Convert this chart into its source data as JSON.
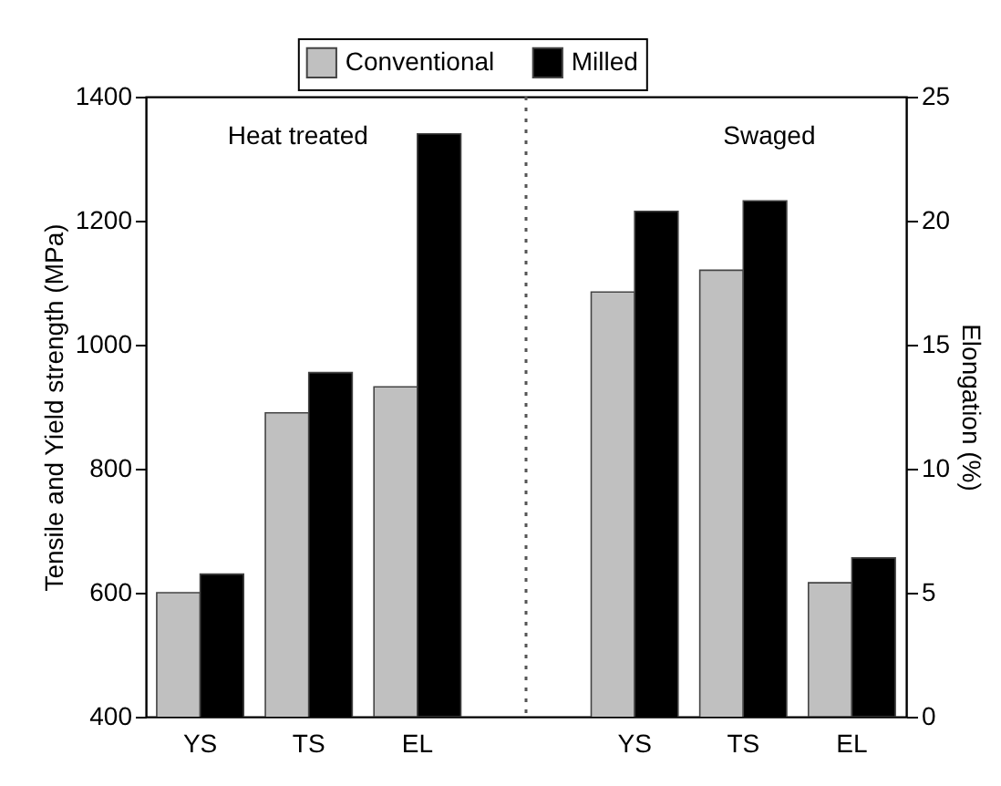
{
  "chart_data": {
    "type": "bar",
    "categories": [
      "YS",
      "TS",
      "EL",
      null,
      "YS",
      "TS",
      "EL"
    ],
    "series": [
      {
        "name": "Conventional",
        "color": "#c0c0c0",
        "values": [
          600,
          890,
          null,
          null,
          1085,
          1120,
          null
        ]
      },
      {
        "name": "Milled",
        "color": "#000000",
        "values": [
          630,
          955,
          null,
          null,
          1215,
          1232,
          null
        ]
      },
      {
        "color": "#c0c0c0",
        "axis": "y2",
        "values": [
          null,
          null,
          13.3,
          null,
          null,
          null,
          5.4
        ]
      },
      {
        "color": "#000000",
        "axis": "y2",
        "values": [
          null,
          null,
          23.5,
          null,
          null,
          null,
          6.4
        ]
      }
    ],
    "ylabel": "Tensile and Yield strength (MPa)",
    "y2label": "Elongation (%)",
    "ylim": [
      400,
      1400
    ],
    "yticks": [
      400,
      600,
      800,
      1000,
      1200,
      1400
    ],
    "y2lim": [
      0,
      25
    ],
    "y2ticks": [
      0,
      5,
      10,
      15,
      20,
      25
    ],
    "legend": "top",
    "annotations": [
      "Heat treated",
      "Swaged"
    ],
    "ref_lines": [
      {
        "axis": "x",
        "line_style": "dotted",
        "color": "#555555"
      }
    ]
  }
}
